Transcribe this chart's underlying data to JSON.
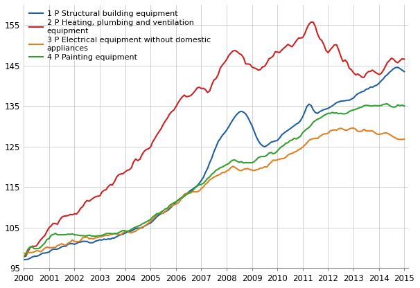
{
  "title": "",
  "series": [
    {
      "label": "1 P Structural building equipment",
      "color": "#2060a0",
      "linewidth": 1.5
    },
    {
      "label": "2 P Heating, plumbing and ventilation\nequipment",
      "color": "#cc2222",
      "linewidth": 1.5
    },
    {
      "label": "3 P Electrical equipment without domestic\nappliances",
      "color": "#e08020",
      "linewidth": 1.5
    },
    {
      "label": "4 P Painting equipment",
      "color": "#30a030",
      "linewidth": 1.5
    }
  ],
  "ylim": [
    95,
    160
  ],
  "yticks": [
    95,
    105,
    115,
    125,
    135,
    145,
    155
  ],
  "background_color": "#ffffff",
  "grid_color": "#cccccc",
  "legend_fontsize": 8,
  "tick_fontsize": 8.5
}
